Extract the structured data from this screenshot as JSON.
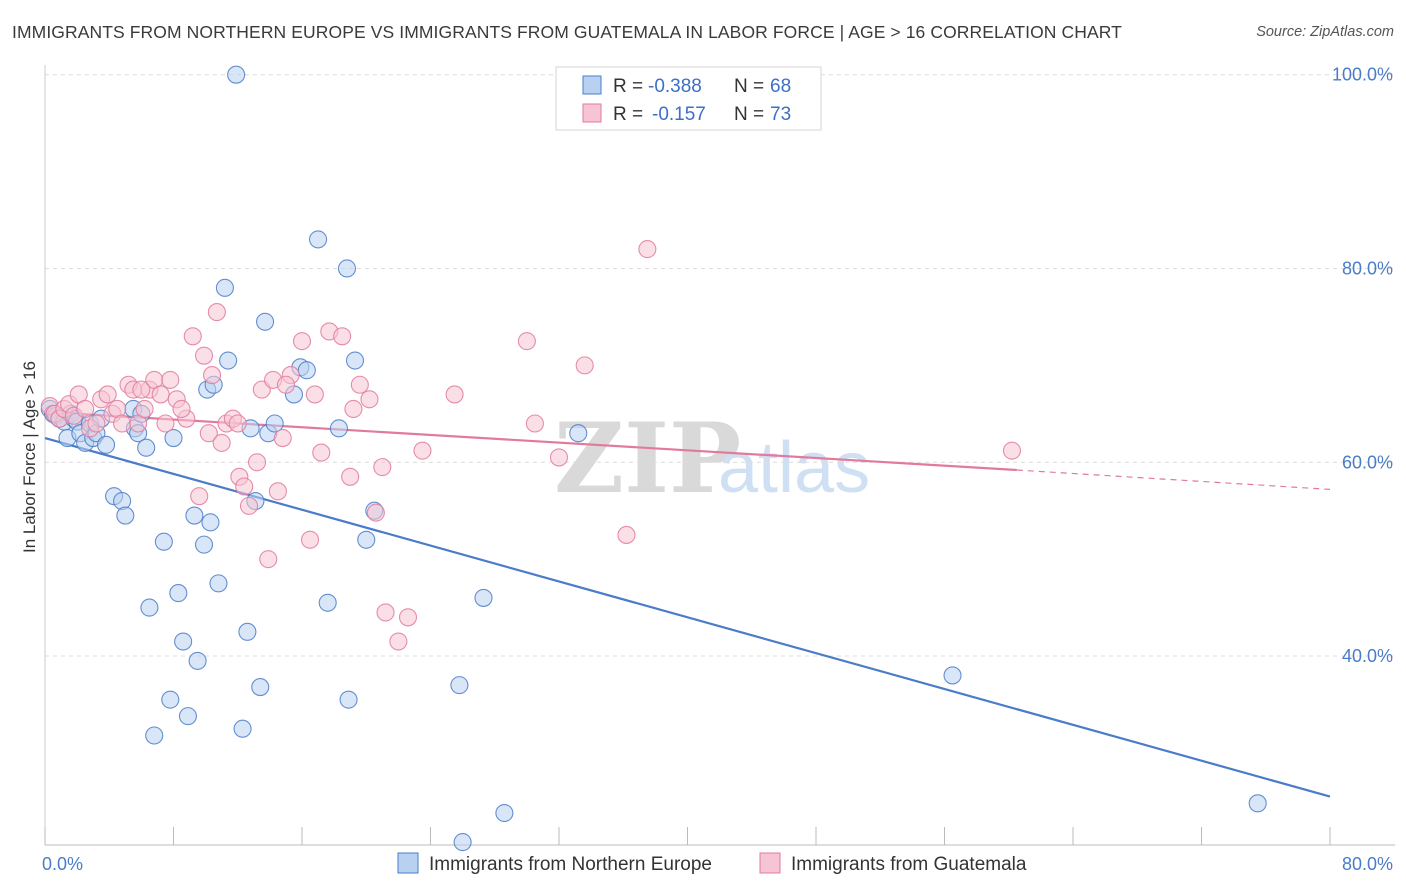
{
  "header": {
    "title": "IMMIGRANTS FROM NORTHERN EUROPE VS IMMIGRANTS FROM GUATEMALA IN LABOR FORCE | AGE > 16 CORRELATION CHART",
    "source": "Source: ZipAtlas.com"
  },
  "watermark": {
    "zip": "ZIP",
    "atlas": "atlas"
  },
  "legend": {
    "r_label": "R =",
    "n_label": "N =",
    "rows": [
      {
        "r": "-0.388",
        "n": "68",
        "color": "#4a7cc9"
      },
      {
        "r": "-0.157",
        "n": "73",
        "color": "#e27a9e"
      }
    ]
  },
  "chart_data": {
    "type": "scatter",
    "title": "IMMIGRANTS FROM NORTHERN EUROPE VS IMMIGRANTS FROM GUATEMALA IN LABOR FORCE | AGE > 16 CORRELATION CHART",
    "xlabel": "",
    "ylabel": "In Labor Force | Age > 16",
    "xlim": [
      0,
      80
    ],
    "ylim": [
      20.5,
      101
    ],
    "x_tick_labels": [
      {
        "value": 0,
        "label": "0.0%"
      },
      {
        "value": 80,
        "label": "80.0%"
      }
    ],
    "y_tick_labels": [
      {
        "value": 40,
        "label": "40.0%"
      },
      {
        "value": 60,
        "label": "60.0%"
      },
      {
        "value": 80,
        "label": "80.0%"
      },
      {
        "value": 100,
        "label": "100.0%"
      }
    ],
    "grid": "horizontal dashed",
    "legend_placement": "bottom",
    "series": [
      {
        "name": "Immigrants from Northern Europe",
        "color": "#4a7cc9",
        "fill": "#b9d1f1",
        "trend": {
          "x": [
            0,
            80
          ],
          "y": [
            62.5,
            25.5
          ],
          "dashed_from": null
        },
        "points": [
          [
            0.3,
            65.5
          ],
          [
            0.5,
            65.0
          ],
          [
            0.7,
            64.8
          ],
          [
            0.9,
            64.5
          ],
          [
            1.2,
            64.2
          ],
          [
            1.4,
            62.5
          ],
          [
            1.6,
            65.0
          ],
          [
            1.8,
            64.5
          ],
          [
            2.0,
            64.2
          ],
          [
            2.2,
            63.0
          ],
          [
            2.5,
            62.0
          ],
          [
            2.8,
            64.0
          ],
          [
            3.0,
            62.5
          ],
          [
            3.2,
            63.0
          ],
          [
            3.5,
            64.5
          ],
          [
            3.8,
            61.8
          ],
          [
            4.3,
            56.5
          ],
          [
            4.8,
            56.0
          ],
          [
            5.0,
            54.5
          ],
          [
            5.5,
            65.5
          ],
          [
            5.6,
            63.5
          ],
          [
            5.8,
            63.0
          ],
          [
            6.0,
            65.0
          ],
          [
            6.3,
            61.5
          ],
          [
            6.5,
            45.0
          ],
          [
            6.8,
            31.8
          ],
          [
            7.4,
            51.8
          ],
          [
            7.8,
            35.5
          ],
          [
            8.0,
            62.5
          ],
          [
            8.3,
            46.5
          ],
          [
            8.6,
            41.5
          ],
          [
            8.9,
            33.8
          ],
          [
            9.3,
            54.5
          ],
          [
            9.5,
            39.5
          ],
          [
            9.9,
            51.5
          ],
          [
            10.1,
            67.5
          ],
          [
            10.3,
            53.8
          ],
          [
            10.5,
            68.0
          ],
          [
            10.8,
            47.5
          ],
          [
            11.2,
            78.0
          ],
          [
            11.4,
            70.5
          ],
          [
            11.9,
            100.0
          ],
          [
            12.3,
            32.5
          ],
          [
            12.6,
            42.5
          ],
          [
            12.8,
            63.5
          ],
          [
            13.1,
            56.0
          ],
          [
            13.4,
            36.8
          ],
          [
            13.7,
            74.5
          ],
          [
            13.9,
            63.0
          ],
          [
            14.3,
            64.0
          ],
          [
            15.5,
            67.0
          ],
          [
            15.9,
            69.8
          ],
          [
            16.3,
            69.5
          ],
          [
            17.0,
            83.0
          ],
          [
            17.6,
            45.5
          ],
          [
            18.3,
            63.5
          ],
          [
            18.8,
            80.0
          ],
          [
            18.9,
            35.5
          ],
          [
            19.3,
            70.5
          ],
          [
            20.0,
            52.0
          ],
          [
            20.5,
            55.0
          ],
          [
            25.8,
            37.0
          ],
          [
            27.3,
            46.0
          ],
          [
            28.6,
            23.8
          ],
          [
            26.0,
            20.8
          ],
          [
            33.2,
            63.0
          ],
          [
            56.5,
            38.0
          ],
          [
            75.5,
            24.8
          ]
        ]
      },
      {
        "name": "Immigrants from Guatemala",
        "color": "#e27a9e",
        "fill": "#f6c4d4",
        "trend": {
          "x": [
            0,
            60.5,
            80
          ],
          "y": [
            65.2,
            59.2,
            57.2
          ],
          "dashed_from": 60.5
        },
        "points": [
          [
            0.3,
            65.8
          ],
          [
            0.6,
            65.0
          ],
          [
            0.9,
            64.5
          ],
          [
            1.2,
            65.5
          ],
          [
            1.5,
            66.0
          ],
          [
            1.8,
            64.8
          ],
          [
            2.1,
            67.0
          ],
          [
            2.5,
            65.5
          ],
          [
            2.8,
            63.5
          ],
          [
            3.2,
            64.0
          ],
          [
            3.5,
            66.5
          ],
          [
            3.9,
            67.0
          ],
          [
            4.2,
            65.0
          ],
          [
            4.5,
            65.5
          ],
          [
            4.8,
            64.0
          ],
          [
            5.2,
            68.0
          ],
          [
            5.5,
            67.5
          ],
          [
            5.8,
            64.0
          ],
          [
            6.2,
            65.5
          ],
          [
            6.5,
            67.5
          ],
          [
            6.8,
            68.5
          ],
          [
            7.2,
            67.0
          ],
          [
            7.5,
            64.0
          ],
          [
            7.8,
            68.5
          ],
          [
            8.2,
            66.5
          ],
          [
            8.8,
            64.5
          ],
          [
            9.2,
            73.0
          ],
          [
            9.6,
            56.5
          ],
          [
            9.9,
            71.0
          ],
          [
            10.2,
            63.0
          ],
          [
            10.4,
            69.0
          ],
          [
            10.7,
            75.5
          ],
          [
            11.0,
            62.0
          ],
          [
            11.3,
            64.0
          ],
          [
            11.7,
            64.5
          ],
          [
            12.1,
            58.5
          ],
          [
            12.4,
            57.5
          ],
          [
            12.7,
            55.5
          ],
          [
            13.2,
            60.0
          ],
          [
            13.5,
            67.5
          ],
          [
            13.9,
            50.0
          ],
          [
            14.2,
            68.5
          ],
          [
            14.5,
            57.0
          ],
          [
            14.8,
            62.5
          ],
          [
            15.3,
            69.0
          ],
          [
            16.0,
            72.5
          ],
          [
            16.5,
            52.0
          ],
          [
            16.8,
            67.0
          ],
          [
            17.2,
            61.0
          ],
          [
            17.7,
            73.5
          ],
          [
            18.5,
            73.0
          ],
          [
            19.0,
            58.5
          ],
          [
            19.2,
            65.5
          ],
          [
            19.6,
            68.0
          ],
          [
            20.2,
            66.5
          ],
          [
            20.6,
            54.8
          ],
          [
            21.0,
            59.5
          ],
          [
            21.2,
            44.5
          ],
          [
            22.0,
            41.5
          ],
          [
            22.6,
            44.0
          ],
          [
            23.5,
            61.2
          ],
          [
            25.5,
            67.0
          ],
          [
            30.0,
            72.5
          ],
          [
            30.5,
            64.0
          ],
          [
            32.0,
            60.5
          ],
          [
            33.6,
            70.0
          ],
          [
            36.2,
            52.5
          ],
          [
            37.5,
            82.0
          ],
          [
            60.2,
            61.2
          ],
          [
            6.0,
            67.5
          ],
          [
            8.5,
            65.5
          ],
          [
            12.0,
            64.0
          ],
          [
            15.0,
            68.0
          ]
        ]
      }
    ]
  }
}
